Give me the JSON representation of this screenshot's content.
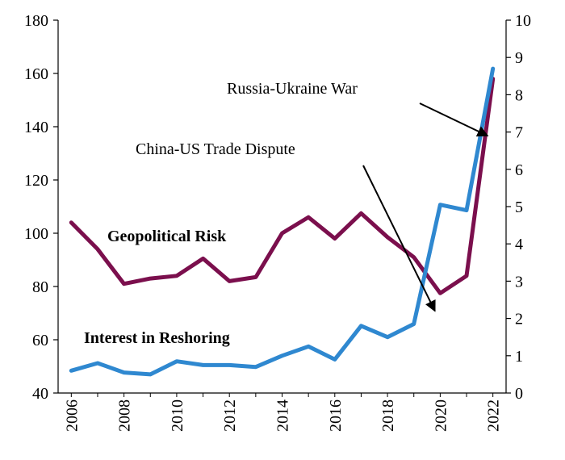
{
  "chart_data": {
    "type": "line",
    "title": "",
    "xlabel": "",
    "ylabel": "",
    "y2label": "",
    "x": [
      2006,
      2007,
      2008,
      2009,
      2010,
      2011,
      2012,
      2013,
      2014,
      2015,
      2016,
      2017,
      2018,
      2019,
      2020,
      2021,
      2022
    ],
    "x_tick_labels": [
      "2006",
      "2008",
      "2010",
      "2012",
      "2014",
      "2016",
      "2018",
      "2020",
      "2022"
    ],
    "ylim": [
      40,
      180
    ],
    "y_ticks": [
      "40",
      "60",
      "80",
      "100",
      "120",
      "140",
      "160",
      "180"
    ],
    "y2lim": [
      0,
      10
    ],
    "y2_ticks": [
      "0",
      "1",
      "2",
      "3",
      "4",
      "5",
      "6",
      "7",
      "8",
      "9",
      "10"
    ],
    "grid": false,
    "series": [
      {
        "name": "Geopolitical Risk",
        "axis": "left",
        "color": "#7b0f4d",
        "values": [
          104,
          94,
          81,
          83,
          84,
          90.5,
          82,
          83.5,
          100,
          106,
          98,
          107.5,
          98.5,
          91,
          77.5,
          84,
          158
        ]
      },
      {
        "name": "Interest in Reshoring",
        "axis": "right",
        "color": "#2f88d0",
        "values": [
          0.6,
          0.8,
          0.55,
          0.5,
          0.85,
          0.75,
          0.75,
          0.7,
          1.0,
          1.25,
          0.9,
          1.8,
          1.5,
          1.85,
          5.05,
          4.9,
          8.7
        ]
      }
    ],
    "annotations": [
      {
        "text": "China-US Trade Dispute",
        "x": 2019.8,
        "y": 2.2
      },
      {
        "text": "Russia-Ukraine War",
        "x": 2021.8,
        "y": 6.9
      }
    ]
  }
}
